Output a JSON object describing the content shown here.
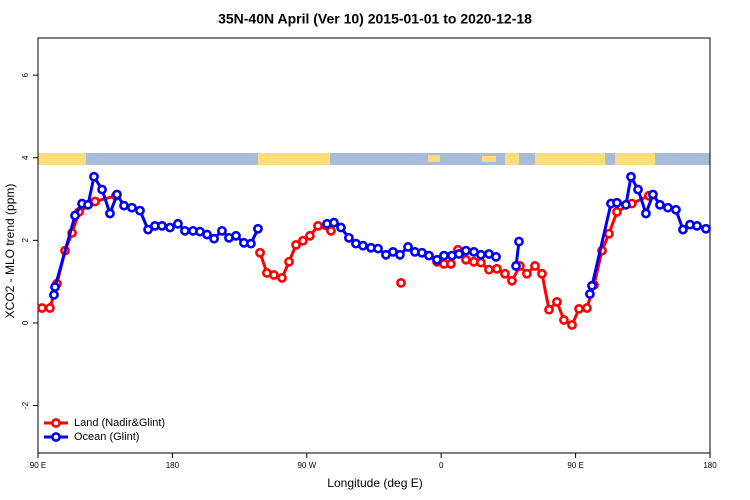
{
  "chart_data": {
    "type": "line",
    "title": "35N-40N April (Ver 10)   2015-01-01 to 2020-12-18",
    "x_label": "Longitude (deg E)",
    "y_label": "XCO2 - MLO trend (ppm)",
    "xlim": [
      90,
      540
    ],
    "xticks": [
      {
        "value": 90,
        "label": "90 E"
      },
      180,
      {
        "value": 270,
        "label": "90 W"
      },
      {
        "value": 360,
        "label": "0"
      },
      {
        "value": 450,
        "label": "90 E"
      },
      {
        "value": 540,
        "label": "180"
      }
    ],
    "ylim": [
      -3.15,
      6.9
    ],
    "yticks": [
      -2,
      0,
      2,
      4,
      6
    ],
    "legend": "bottomleft",
    "series": [
      {
        "name": "Land (Nadir&Glint)",
        "color": "#ff0000",
        "x": [
          92.7,
          98.0,
          102.7,
          108.1,
          112.8,
          117.5,
          128.2,
          142.2,
          null,
          238.7,
          243.3,
          248.0,
          253.4,
          258.1,
          262.8,
          267.4,
          272.1,
          277.5,
          286.2,
          null,
          333.1,
          null,
          357.2,
          361.9,
          366.5,
          371.2,
          376.6,
          381.9,
          386.6,
          392.0,
          397.3,
          402.7,
          407.4,
          412.7,
          417.4,
          422.8,
          427.5,
          432.2,
          437.5,
          442.2,
          447.6,
          452.3,
          457.6,
          462.3,
          467.7,
          472.3,
          477.7,
          487.7,
          499.1
        ],
        "values": [
          0.36,
          0.36,
          0.95,
          1.75,
          2.18,
          2.69,
          2.94,
          3.08,
          null,
          1.7,
          1.21,
          1.16,
          1.09,
          1.48,
          1.89,
          1.99,
          2.11,
          2.35,
          2.23,
          null,
          0.97,
          null,
          1.48,
          1.43,
          1.43,
          1.77,
          1.53,
          1.48,
          1.46,
          1.29,
          1.31,
          1.19,
          1.02,
          1.38,
          1.19,
          1.38,
          1.19,
          0.32,
          0.51,
          0.07,
          -0.05,
          0.34,
          0.36,
          0.92,
          1.75,
          2.16,
          2.69,
          2.89,
          3.08
        ]
      },
      {
        "name": "Ocean (Glint)",
        "color": "#0000ee",
        "x": [
          100.7,
          101.4,
          114.8,
          119.5,
          123.5,
          127.5,
          132.9,
          138.2,
          142.9,
          147.6,
          152.9,
          158.3,
          163.7,
          168.3,
          173.0,
          178.4,
          183.7,
          188.4,
          193.8,
          198.5,
          203.2,
          207.9,
          213.2,
          217.9,
          222.6,
          227.9,
          232.6,
          237.3,
          null,
          283.5,
          288.2,
          292.9,
          298.2,
          302.9,
          307.6,
          313.0,
          317.7,
          323.0,
          327.7,
          332.4,
          337.8,
          342.4,
          347.1,
          351.8,
          357.2,
          361.9,
          367.2,
          371.9,
          376.6,
          381.9,
          386.6,
          392.0,
          396.7,
          null,
          410.1,
          412.1,
          null,
          459.6,
          461.0,
          473.7,
          477.7,
          483.7,
          487.1,
          491.8,
          497.1,
          501.8,
          506.5,
          511.8,
          517.2,
          521.9,
          526.6,
          531.3,
          537.3
        ],
        "values": [
          0.68,
          0.87,
          2.6,
          2.89,
          2.86,
          3.54,
          3.23,
          2.65,
          3.11,
          2.84,
          2.79,
          2.72,
          2.26,
          2.35,
          2.35,
          2.31,
          2.4,
          2.23,
          2.23,
          2.21,
          2.14,
          2.04,
          2.23,
          2.06,
          2.11,
          1.94,
          1.92,
          2.28,
          null,
          2.4,
          2.43,
          2.31,
          2.06,
          1.92,
          1.87,
          1.82,
          1.8,
          1.65,
          1.72,
          1.65,
          1.84,
          1.72,
          1.7,
          1.63,
          1.53,
          1.63,
          1.63,
          1.67,
          1.75,
          1.72,
          1.65,
          1.67,
          1.6,
          null,
          1.38,
          1.97,
          null,
          0.7,
          0.9,
          2.89,
          2.91,
          2.86,
          3.54,
          3.23,
          2.65,
          3.11,
          2.86,
          2.79,
          2.74,
          2.26,
          2.38,
          2.35,
          2.28
        ]
      }
    ]
  }
}
